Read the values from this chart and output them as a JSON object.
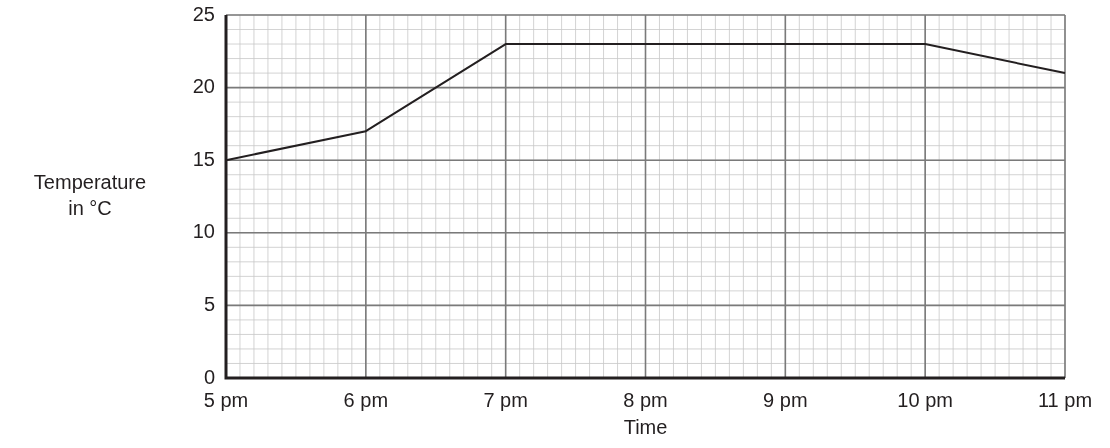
{
  "chart_data": {
    "type": "line",
    "xlabel": "Time",
    "ylabel": "Temperature\nin °C",
    "categories": [
      "5 pm",
      "6 pm",
      "7 pm",
      "8 pm",
      "9 pm",
      "10 pm",
      "11 pm"
    ],
    "series": [
      {
        "color": "#231f20",
        "values": [
          15,
          17,
          23,
          23,
          23,
          23,
          21
        ]
      }
    ],
    "ylim": [
      0,
      25
    ],
    "yticks": [
      0,
      5,
      10,
      15,
      20,
      25
    ],
    "grid": true,
    "marker": "none",
    "line_style": "solid"
  }
}
